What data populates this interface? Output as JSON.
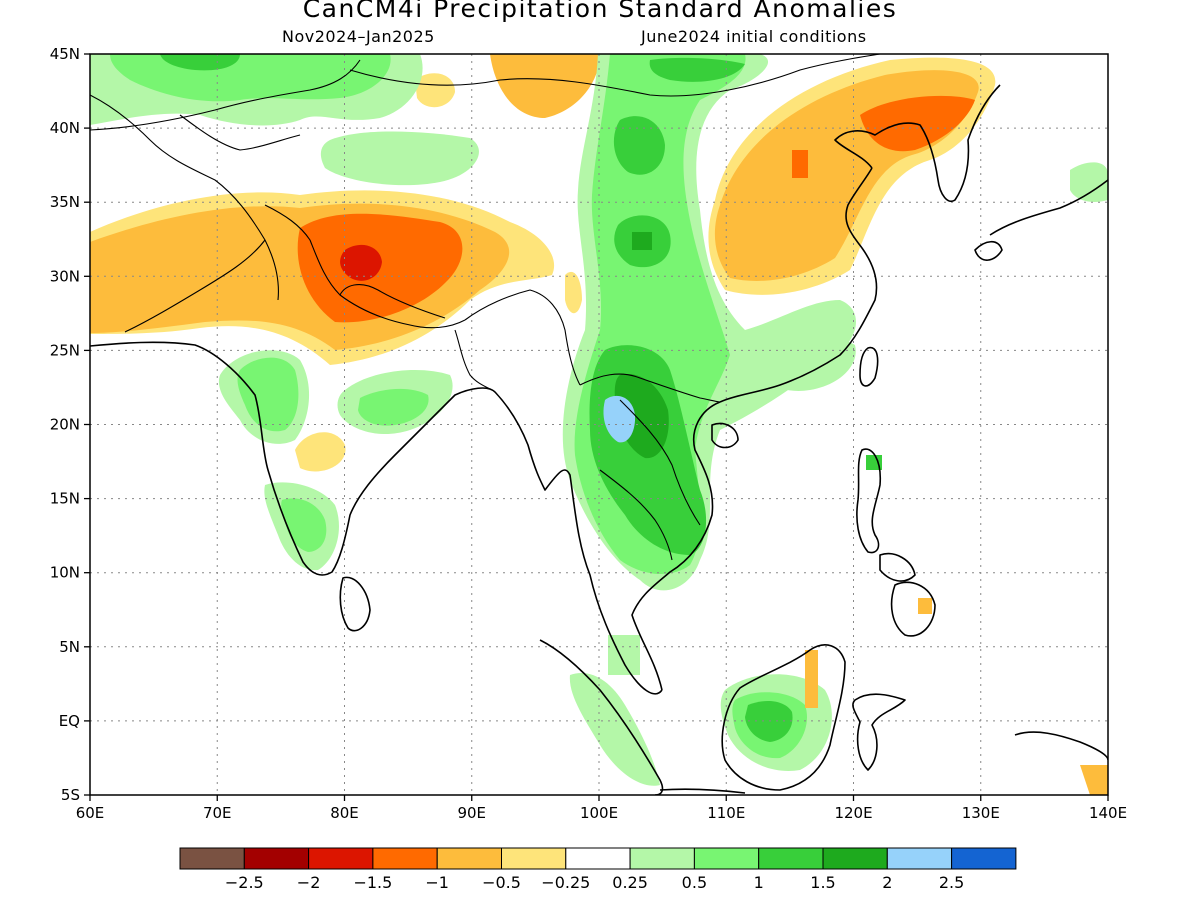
{
  "header": {
    "title": "CanCM4i Precipitation Standard Anomalies",
    "period": "Nov2024–Jan2025",
    "initial_conditions": "June2024 initial conditions"
  },
  "map_data": {
    "lon_range": [
      60,
      140
    ],
    "lat_range": [
      -5,
      45
    ],
    "lat_ticks": [
      {
        "value": 45,
        "label": "45N"
      },
      {
        "value": 40,
        "label": "40N"
      },
      {
        "value": 35,
        "label": "35N"
      },
      {
        "value": 30,
        "label": "30N"
      },
      {
        "value": 25,
        "label": "25N"
      },
      {
        "value": 20,
        "label": "20N"
      },
      {
        "value": 15,
        "label": "15N"
      },
      {
        "value": 10,
        "label": "10N"
      },
      {
        "value": 5,
        "label": "5N"
      },
      {
        "value": 0,
        "label": "EQ"
      },
      {
        "value": -5,
        "label": "5S"
      }
    ],
    "lon_ticks": [
      {
        "value": 60,
        "label": "60E"
      },
      {
        "value": 70,
        "label": "70E"
      },
      {
        "value": 80,
        "label": "80E"
      },
      {
        "value": 90,
        "label": "90E"
      },
      {
        "value": 100,
        "label": "100E"
      },
      {
        "value": 110,
        "label": "110E"
      },
      {
        "value": 120,
        "label": "120E"
      },
      {
        "value": 130,
        "label": "130E"
      },
      {
        "value": 140,
        "label": "140E"
      }
    ],
    "grid": "dotted"
  },
  "colorbar": {
    "colors": [
      "#7a5242",
      "#a30000",
      "#dc1500",
      "#ff6a00",
      "#fdbc3c",
      "#fee47a",
      "#ffffff",
      "#b4f7a8",
      "#78f572",
      "#38cf3a",
      "#1eaa1e",
      "#96d2fa",
      "#1464d2"
    ],
    "labels": [
      "−2.5",
      "−2",
      "−1.5",
      "−1",
      "−0.5",
      "−0.25",
      "0.25",
      "0.5",
      "1",
      "1.5",
      "2",
      "2.5"
    ]
  },
  "anomaly_regions": [
    {
      "level": "-1",
      "color": "#fdbc3c",
      "lon": [
        60,
        98
      ],
      "lat": [
        26,
        37
      ]
    },
    {
      "level": "-1.5",
      "color": "#ff6a00",
      "lon": [
        77,
        90
      ],
      "lat": [
        27,
        34
      ]
    },
    {
      "level": "-2",
      "color": "#dc1500",
      "lon": [
        80.5,
        83
      ],
      "lat": [
        30,
        32
      ]
    },
    {
      "level": "-0.5",
      "color": "#fdbc3c",
      "lon": [
        109,
        128
      ],
      "lat": [
        29,
        44
      ]
    },
    {
      "level": "-1.5",
      "color": "#ff6a00",
      "lon": [
        121,
        127
      ],
      "lat": [
        39,
        43
      ]
    },
    {
      "level": "1",
      "color": "#78f572",
      "lon": [
        98,
        107
      ],
      "lat": [
        11,
        45
      ]
    },
    {
      "level": "1.5",
      "color": "#38cf3a",
      "lon": [
        101,
        106
      ],
      "lat": [
        13,
        24
      ]
    },
    {
      "level": "2",
      "color": "#96d2fa",
      "lon": [
        100.5,
        102
      ],
      "lat": [
        18.5,
        21
      ]
    }
  ]
}
